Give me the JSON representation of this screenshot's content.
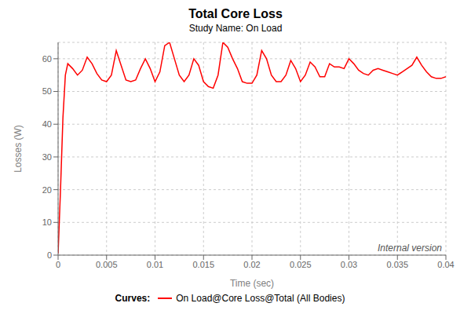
{
  "chart_data": {
    "type": "line",
    "title": "Total Core Loss",
    "subtitle": "Study Name: On Load",
    "xlabel": "Time (sec)",
    "ylabel": "Losses (W)",
    "x": [
      0.0,
      0.00025,
      0.0005,
      0.00075,
      0.001,
      0.0015,
      0.002,
      0.0025,
      0.003,
      0.0035,
      0.004,
      0.0045,
      0.005,
      0.0055,
      0.006,
      0.0065,
      0.007,
      0.0075,
      0.008,
      0.0085,
      0.009,
      0.0095,
      0.01,
      0.0105,
      0.011,
      0.0115,
      0.012,
      0.0125,
      0.013,
      0.0135,
      0.014,
      0.0145,
      0.015,
      0.0155,
      0.016,
      0.0165,
      0.017,
      0.0175,
      0.018,
      0.0185,
      0.019,
      0.0195,
      0.02,
      0.0205,
      0.021,
      0.0215,
      0.022,
      0.0225,
      0.023,
      0.0235,
      0.024,
      0.0245,
      0.025,
      0.0255,
      0.026,
      0.0265,
      0.027,
      0.0275,
      0.028,
      0.0285,
      0.029,
      0.0295,
      0.03,
      0.0305,
      0.031,
      0.0315,
      0.032,
      0.0325,
      0.033,
      0.0335,
      0.034,
      0.0345,
      0.035,
      0.0355,
      0.036,
      0.0365,
      0.037,
      0.0375,
      0.038,
      0.0385,
      0.039,
      0.0395,
      0.04
    ],
    "series": [
      {
        "name": "On Load@Core Loss@Total (All Bodies)",
        "color": "#ff0000",
        "values": [
          0.5,
          20.0,
          42.0,
          55.0,
          58.5,
          57.0,
          55.0,
          56.5,
          60.5,
          58.5,
          55.5,
          53.5,
          53.0,
          55.0,
          62.5,
          58.0,
          53.5,
          53.0,
          53.5,
          57.0,
          60.0,
          57.0,
          53.0,
          56.0,
          64.0,
          65.0,
          60.0,
          55.0,
          53.0,
          55.0,
          60.0,
          58.0,
          53.0,
          51.5,
          51.0,
          55.0,
          65.0,
          63.5,
          60.0,
          57.0,
          53.0,
          52.5,
          52.5,
          55.0,
          62.5,
          60.0,
          55.0,
          53.0,
          53.0,
          55.0,
          59.5,
          57.0,
          53.0,
          55.0,
          59.0,
          57.5,
          54.5,
          54.5,
          58.5,
          57.5,
          57.5,
          57.0,
          60.0,
          58.5,
          56.5,
          55.5,
          55.0,
          56.5,
          57.0,
          56.5,
          56.0,
          55.5,
          55.0,
          56.0,
          57.0,
          58.0,
          60.5,
          58.0,
          56.0,
          54.5,
          54.0,
          54.0,
          54.5
        ]
      }
    ],
    "xlim": [
      0,
      0.04
    ],
    "ylim": [
      0,
      65
    ],
    "xticks": [
      0,
      0.005,
      0.01,
      0.015,
      0.02,
      0.025,
      0.03,
      0.035,
      0.04
    ],
    "yticks": [
      0,
      10,
      20,
      30,
      40,
      50,
      60
    ],
    "grid": true,
    "legend": "bottom",
    "legend_title": "Curves:",
    "annotations": [
      {
        "text": "Internal version"
      }
    ]
  }
}
